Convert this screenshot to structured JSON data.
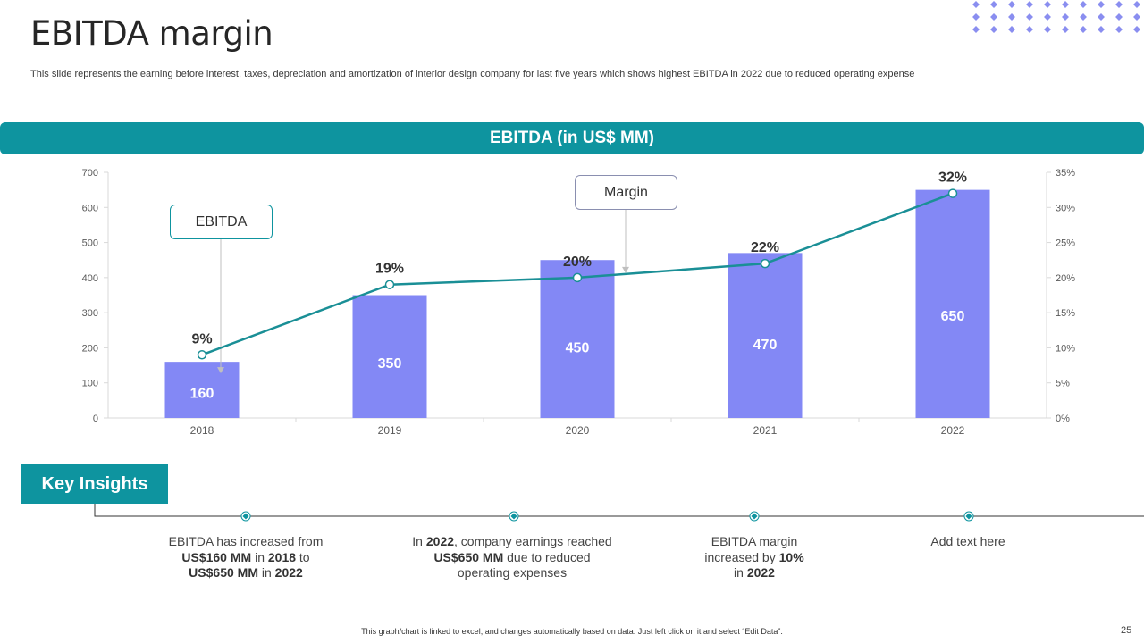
{
  "slide": {
    "title": "EBITDA margin",
    "subtitle": "This slide represents the earning before interest, taxes, depreciation and amortization of interior design company for last five  years which shows highest EBITDA in 2022 due to reduced operating expense",
    "footer": "This graph/chart is linked to excel, and changes automatically based on data. Just left click on it and select “Edit Data”.",
    "page_number": "25"
  },
  "colors": {
    "accent": "#0e949f",
    "bar": "#8388f5",
    "line": "#1a8f96",
    "dots": "#8a8ef0"
  },
  "chart_data": {
    "type": "bar",
    "title": "EBITDA (in US$ MM)",
    "categories": [
      "2018",
      "2019",
      "2020",
      "2021",
      "2022"
    ],
    "series": [
      {
        "name": "EBITDA",
        "type": "bar",
        "axis": "left",
        "values": [
          160,
          350,
          450,
          470,
          650
        ],
        "labels": [
          "160",
          "350",
          "450",
          "470",
          "650"
        ]
      },
      {
        "name": "Margin",
        "type": "line",
        "axis": "right",
        "values": [
          9,
          19,
          20,
          22,
          32
        ],
        "labels": [
          "9%",
          "19%",
          "20%",
          "22%",
          "32%"
        ]
      }
    ],
    "ylim": [
      0,
      700
    ],
    "yticks": [
      0,
      100,
      200,
      300,
      400,
      500,
      600,
      700
    ],
    "ytick_labels": [
      "0",
      "100",
      "200",
      "300",
      "400",
      "500",
      "600",
      "700"
    ],
    "y2lim": [
      0,
      35
    ],
    "y2ticks": [
      0,
      5,
      10,
      15,
      20,
      25,
      30,
      35
    ],
    "y2tick_labels": [
      "0%",
      "5%",
      "10%",
      "15%",
      "20%",
      "25%",
      "30%",
      "35%"
    ],
    "annotations": [
      {
        "text": "EBITDA",
        "points_to": "2018"
      },
      {
        "text": "Margin",
        "points_to": "2020"
      }
    ],
    "grid": false
  },
  "insights": {
    "heading": "Key Insights",
    "items": [
      {
        "lines": [
          [
            {
              "t": "EBITDA has increased from",
              "b": false
            }
          ],
          [
            {
              "t": "US$160 MM",
              "b": true
            },
            {
              "t": " in ",
              "b": false
            },
            {
              "t": "2018",
              "b": true
            },
            {
              "t": " to",
              "b": false
            }
          ],
          [
            {
              "t": "US$650 MM",
              "b": true
            },
            {
              "t": " in ",
              "b": false
            },
            {
              "t": "2022",
              "b": true
            }
          ]
        ]
      },
      {
        "lines": [
          [
            {
              "t": "In ",
              "b": false
            },
            {
              "t": "2022",
              "b": true
            },
            {
              "t": ", company earnings reached",
              "b": false
            }
          ],
          [
            {
              "t": "US$650 MM",
              "b": true
            },
            {
              "t": " due to reduced",
              "b": false
            }
          ],
          [
            {
              "t": "operating expenses",
              "b": false
            }
          ]
        ]
      },
      {
        "lines": [
          [
            {
              "t": "EBITDA margin",
              "b": false
            }
          ],
          [
            {
              "t": "increased by ",
              "b": false
            },
            {
              "t": "10%",
              "b": true
            }
          ],
          [
            {
              "t": "in ",
              "b": false
            },
            {
              "t": "2022",
              "b": true
            }
          ]
        ]
      },
      {
        "lines": [
          [
            {
              "t": "Add text here",
              "b": false
            }
          ]
        ]
      }
    ]
  }
}
